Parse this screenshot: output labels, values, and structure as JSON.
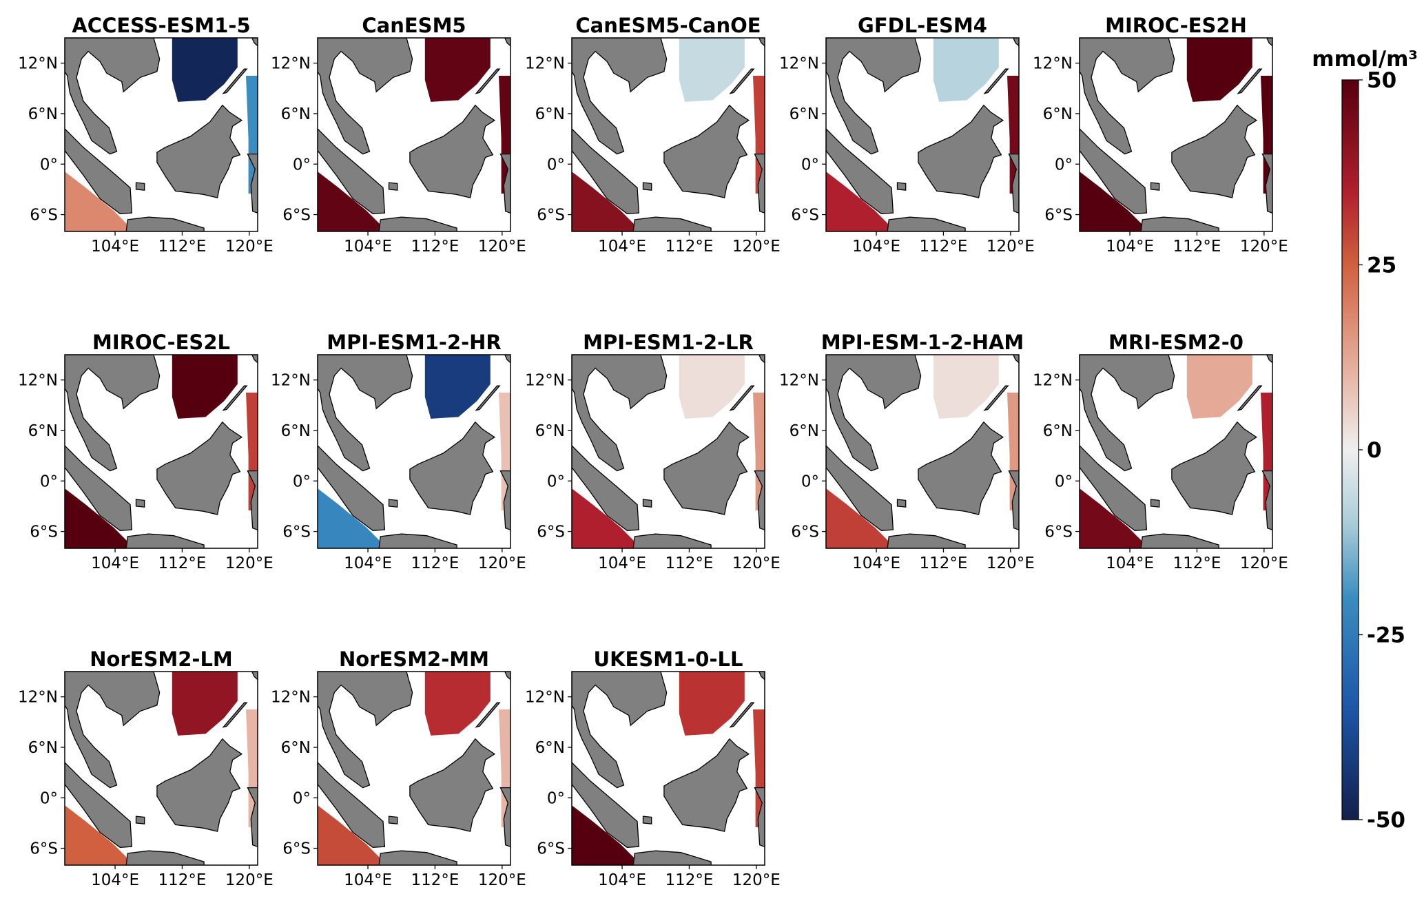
{
  "map": {
    "xlim": [
      98,
      121
    ],
    "ylim": [
      -8,
      15
    ],
    "xticks": [
      {
        "value": 104,
        "label": "104°E"
      },
      {
        "value": 112,
        "label": "112°E"
      },
      {
        "value": 120,
        "label": "120°E"
      }
    ],
    "yticks": [
      {
        "value": 12,
        "label": "12°N"
      },
      {
        "value": 6,
        "label": "6°N"
      },
      {
        "value": 0,
        "label": "0°"
      },
      {
        "value": -6,
        "label": "6°S"
      }
    ]
  },
  "colorbar": {
    "label": "mmol/m³",
    "lim": [
      -50,
      50
    ],
    "ticks": [
      50,
      25,
      0,
      -25,
      -50
    ]
  },
  "panels": [
    {
      "title": "ACCESS-ESM1-5",
      "values": [
        -48,
        18,
        -20
      ]
    },
    {
      "title": "CanESM5",
      "values": [
        48,
        48,
        48
      ]
    },
    {
      "title": "CanESM5-CanOE",
      "values": [
        -6,
        42,
        30
      ]
    },
    {
      "title": "GFDL-ESM4",
      "values": [
        -8,
        35,
        45
      ]
    },
    {
      "title": "MIROC-ES2H",
      "values": [
        50,
        50,
        50
      ]
    },
    {
      "title": "MIROC-ES2L",
      "values": [
        50,
        50,
        30
      ]
    },
    {
      "title": "MPI-ESM1-2-HR",
      "values": [
        -42,
        -22,
        8
      ]
    },
    {
      "title": "MPI-ESM1-2-LR",
      "values": [
        3,
        35,
        15
      ]
    },
    {
      "title": "MPI-ESM-1-2-HAM",
      "values": [
        3,
        30,
        15
      ]
    },
    {
      "title": "MRI-ESM2-0",
      "values": [
        12,
        45,
        35
      ]
    },
    {
      "title": "NorESM2-LM",
      "values": [
        40,
        25,
        10
      ]
    },
    {
      "title": "NorESM2-MM",
      "values": [
        33,
        28,
        10
      ]
    },
    {
      "title": "UKESM1-0-LL",
      "values": [
        32,
        50,
        30
      ]
    }
  ]
}
